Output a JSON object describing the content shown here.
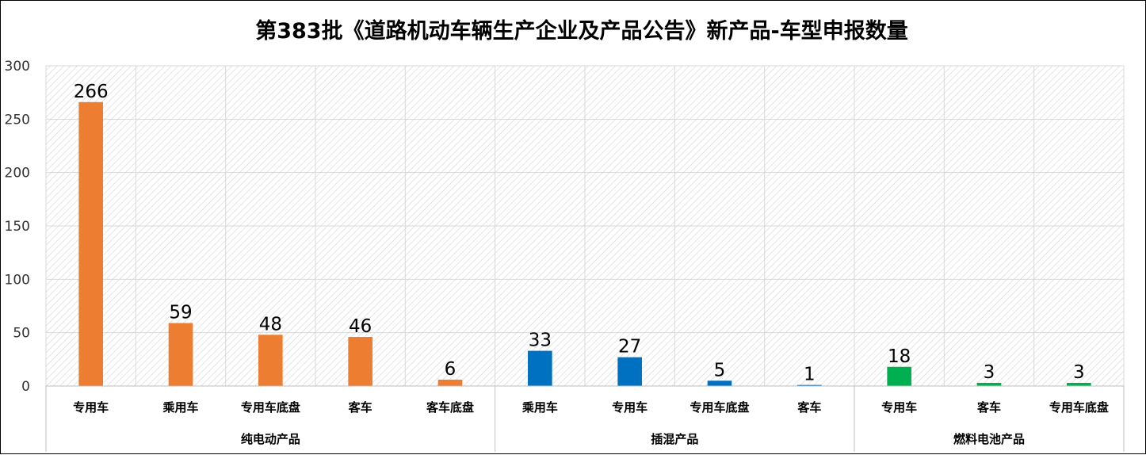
{
  "chart_data": {
    "type": "bar",
    "title": "第383批《道路机动车辆生产企业及产品公告》新产品-车型申报数量",
    "xlabel": "",
    "ylabel": "",
    "ylim": [
      0,
      300
    ],
    "yticks": [
      0,
      50,
      100,
      150,
      200,
      250,
      300
    ],
    "grid": true,
    "legend": "none",
    "groups": [
      {
        "name": "纯电动产品",
        "color": "#ED7D31",
        "categories": [
          "专用车",
          "乘用车",
          "专用车底盘",
          "客车",
          "客车底盘"
        ],
        "values": [
          266,
          59,
          48,
          46,
          6
        ]
      },
      {
        "name": "插混产品",
        "color": "#0070C0",
        "categories": [
          "乘用车",
          "专用车",
          "专用车底盘",
          "客车"
        ],
        "values": [
          33,
          27,
          5,
          1
        ]
      },
      {
        "name": "燃料电池产品",
        "color": "#00B050",
        "categories": [
          "专用车",
          "客车",
          "专用车底盘"
        ],
        "values": [
          18,
          3,
          3
        ]
      }
    ]
  }
}
